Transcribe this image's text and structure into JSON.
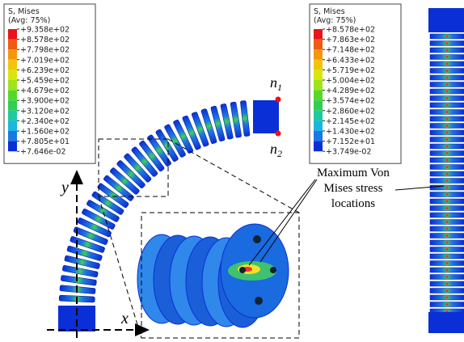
{
  "legends": [
    {
      "title": "S, Mises",
      "subtitle": "(Avg: 75%)",
      "entries": [
        "+9.358e+02",
        "+8.578e+02",
        "+7.798e+02",
        "+7.019e+02",
        "+6.239e+02",
        "+5.459e+02",
        "+4.679e+02",
        "+3.900e+02",
        "+3.120e+02",
        "+2.340e+02",
        "+1.560e+02",
        "+7.805e+01",
        "+7.646e-02"
      ]
    },
    {
      "title": "S, Mises",
      "subtitle": "(Avg: 75%)",
      "entries": [
        "+8.578e+02",
        "+7.863e+02",
        "+7.148e+02",
        "+6.433e+02",
        "+5.719e+02",
        "+5.004e+02",
        "+4.289e+02",
        "+3.574e+02",
        "+2.860e+02",
        "+2.145e+02",
        "+1.430e+02",
        "+7.152e+01",
        "+3.749e-02"
      ]
    }
  ],
  "nodes": [
    {
      "letter": "n",
      "index": "1"
    },
    {
      "letter": "n",
      "index": "2"
    }
  ],
  "axes": {
    "y": "y",
    "x": "x"
  },
  "annotation": [
    "Maximum Von",
    "Mises  stress",
    "locations"
  ]
}
